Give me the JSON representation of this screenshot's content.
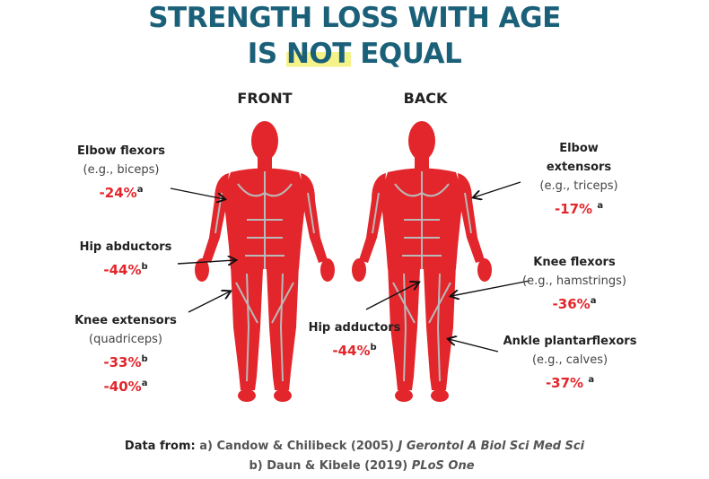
{
  "title": {
    "line1": "STRENGTH LOSS WITH AGE",
    "line2": [
      "IS",
      "NOT",
      "EQUAL"
    ]
  },
  "views": {
    "front": "FRONT",
    "back": "BACK"
  },
  "muscles": [
    {
      "name": "Elbow flexors",
      "example": "(e.g., biceps)",
      "changes": [
        {
          "value": "-24%",
          "ref": "a"
        }
      ]
    },
    {
      "name": "Hip abductors",
      "changes": [
        {
          "value": "-44%",
          "ref": "b"
        }
      ]
    },
    {
      "name": "Knee extensors",
      "example": "(quadriceps)",
      "changes": [
        {
          "value": "-33%",
          "ref": "b"
        },
        {
          "value": "-40%",
          "ref": "a"
        }
      ]
    },
    {
      "name": "Elbow extensors",
      "example": "(e.g., triceps)",
      "changes": [
        {
          "value": "-17%",
          "ref": "a"
        }
      ]
    },
    {
      "name": "Knee flexors",
      "example": "(e.g., hamstrings)",
      "changes": [
        {
          "value": "-36%",
          "ref": "a"
        }
      ]
    },
    {
      "name": "Hip adductors",
      "changes": [
        {
          "value": "-44%",
          "ref": "b"
        }
      ]
    },
    {
      "name": "Ankle plantarflexors",
      "example": "(e.g., calves)",
      "changes": [
        {
          "value": "-37%",
          "ref": "a"
        }
      ]
    }
  ],
  "sources": {
    "label": "Data from:",
    "items": [
      {
        "prefix": "a)",
        "authors": "Candow & Chilibeck (2005)",
        "journal": "J Gerontol A Biol Sci Med Sci"
      },
      {
        "prefix": "b)",
        "authors": "Daun & Kibele (2019)",
        "journal": "PLoS One"
      }
    ]
  }
}
